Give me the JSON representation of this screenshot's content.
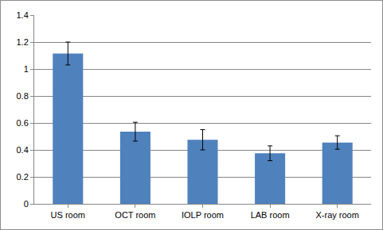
{
  "chart_data": {
    "type": "bar",
    "categories": [
      "US room",
      "OCT room",
      "IOLP room",
      "LAB room",
      "X-ray room"
    ],
    "values": [
      1.115,
      0.535,
      0.475,
      0.375,
      0.455
    ],
    "errors": [
      0.085,
      0.07,
      0.075,
      0.055,
      0.05
    ],
    "color": "#4f81bd",
    "ylim": [
      0,
      1.4
    ],
    "yticks": [
      0,
      0.2,
      0.4,
      0.6,
      0.8,
      1,
      1.2,
      1.4
    ],
    "grid": true
  }
}
